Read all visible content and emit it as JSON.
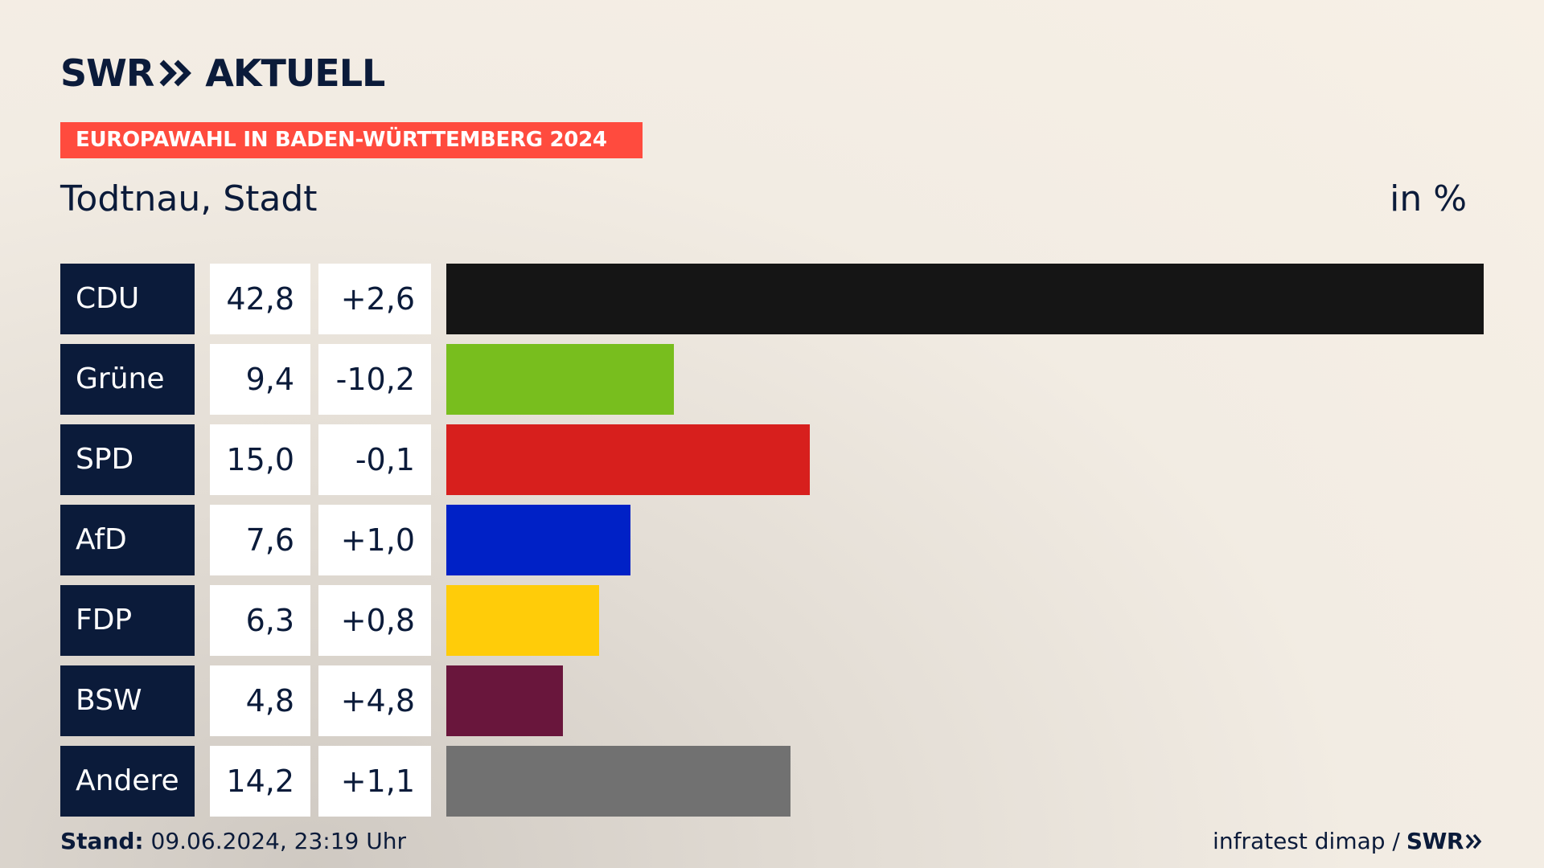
{
  "header": {
    "logo_left": "SWR",
    "logo_right": "AKTUELL",
    "banner": "EUROPAWAHL IN BADEN-WÜRTTEMBERG 2024",
    "subtitle": "Todtnau, Stadt",
    "unit": "in %"
  },
  "colors": {
    "CDU": "#151515",
    "Grüne": "#78be1e",
    "SPD": "#d71f1d",
    "AfD": "#0021c6",
    "FDP": "#ffcc09",
    "BSW": "#69163c",
    "Andere": "#717171"
  },
  "chart_data": {
    "type": "bar",
    "orientation": "horizontal",
    "categories": [
      "CDU",
      "Grüne",
      "SPD",
      "AfD",
      "FDP",
      "BSW",
      "Andere"
    ],
    "values": [
      42.8,
      9.4,
      15.0,
      7.6,
      6.3,
      4.8,
      14.2
    ],
    "value_labels": [
      "42,8",
      "9,4",
      "15,0",
      "7,6",
      "6,3",
      "4,8",
      "14,2"
    ],
    "diff_labels": [
      "+2,6",
      "-10,2",
      "-0,1",
      "+1,0",
      "+0,8",
      "+4,8",
      "+1,1"
    ],
    "diff_values": [
      2.6,
      -10.2,
      -0.1,
      1.0,
      0.8,
      4.8,
      1.1
    ],
    "xlim": [
      0,
      42.8
    ]
  },
  "footer": {
    "stand_label": "Stand:",
    "stand_value": "09.06.2024, 23:19 Uhr",
    "source": "infratest dimap /",
    "source_logo": "SWR"
  }
}
